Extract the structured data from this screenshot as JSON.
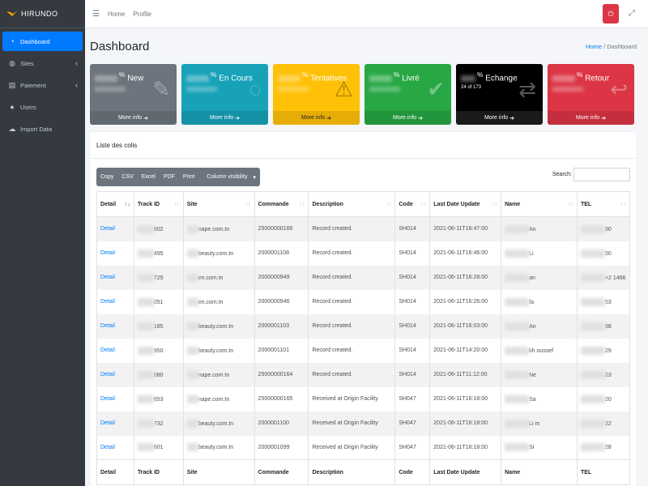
{
  "brand": {
    "name": "HIRUNDO"
  },
  "sidebar": {
    "items": [
      {
        "label": "Dashboard",
        "icon": "dashboard-icon",
        "active": true
      },
      {
        "label": "Sites",
        "icon": "sites-icon",
        "has_chevron": true
      },
      {
        "label": "Paiement",
        "icon": "payment-icon",
        "has_chevron": true
      },
      {
        "label": "Users",
        "icon": "user-icon"
      },
      {
        "label": "Import Data",
        "icon": "cloud-upload-icon"
      }
    ]
  },
  "topbar": {
    "home": "Home",
    "profile": "Profile"
  },
  "header": {
    "title": "Dashboard",
    "breadcrumb_home": "Home",
    "breadcrumb_sep": "/",
    "breadcrumb_current": "Dashboard"
  },
  "boxes": [
    {
      "label": "New",
      "pct": "%",
      "more": "More info",
      "color": "#6c757d",
      "icon": "edit-icon"
    },
    {
      "label": "En Cours",
      "pct": "%",
      "more": "More info",
      "color": "#17a2b8",
      "icon": "spinner-icon"
    },
    {
      "label": "Tentatives",
      "pct": "%",
      "more": "More info",
      "color": "#ffc107",
      "icon": "warning-icon"
    },
    {
      "label": "Livré",
      "pct": "%",
      "more": "More info",
      "color": "#28a745",
      "icon": "check-icon"
    },
    {
      "label": "Echange",
      "pct": "%",
      "sub": "24 of 173",
      "more": "More info",
      "color": "#000000",
      "icon": "exchange-icon"
    },
    {
      "label": "Retour",
      "pct": "%",
      "more": "More info",
      "color": "#dc3545",
      "icon": "return-icon"
    }
  ],
  "card": {
    "title": "Liste des colis"
  },
  "toolbar": {
    "copy": "Copy",
    "csv": "CSV",
    "excel": "Excel",
    "pdf": "PDF",
    "print": "Print",
    "colvis": "Column visibility"
  },
  "search": {
    "label": "Search:",
    "value": ""
  },
  "table": {
    "columns": [
      "Detail",
      "Track ID",
      "Site",
      "Commande",
      "Description",
      "Code",
      "Last Date Update",
      "Name",
      "TEL"
    ],
    "rows": [
      {
        "detail": "Detail",
        "track": "602",
        "site": "nape.com.tn",
        "commande": "25000000166",
        "desc": "Record created.",
        "code": "SH014",
        "date": "2021-06-11T16:47:00",
        "name": "An",
        "tel": "90"
      },
      {
        "detail": "Detail",
        "track": "495",
        "site": "beauty.com.tn",
        "commande": "2000001108",
        "desc": "Record created.",
        "code": "SH014",
        "date": "2021-06-11T16:46:00",
        "name": "Li",
        "tel": "50"
      },
      {
        "detail": "Detail",
        "track": "725",
        "site": "en.com.tn",
        "commande": "2000000949",
        "desc": "Record created.",
        "code": "SH014",
        "date": "2021-06-11T16:28:00",
        "name": "an",
        "tel": "+2 1466"
      },
      {
        "detail": "Detail",
        "track": "051",
        "site": "en.com.tn",
        "commande": "2000000946",
        "desc": "Record created.",
        "code": "SH014",
        "date": "2021-06-11T16:26:00",
        "name": "fa",
        "tel": "53"
      },
      {
        "detail": "Detail",
        "track": "185",
        "site": "beauty.com.tn",
        "commande": "2000001103",
        "desc": "Record created.",
        "code": "SH014",
        "date": "2021-06-11T16:03:00",
        "name": "An",
        "tel": "98"
      },
      {
        "detail": "Detail",
        "track": "950",
        "site": "beauty.com.tn",
        "commande": "2000001101",
        "desc": "Record created.",
        "code": "SH014",
        "date": "2021-06-11T14:20:00",
        "name": "kh oussef",
        "tel": "29"
      },
      {
        "detail": "Detail",
        "track": "080",
        "site": "nape.com.tn",
        "commande": "25000000164",
        "desc": "Record created.",
        "code": "SH014",
        "date": "2021-06-11T11:12:00",
        "name": "Ne",
        "tel": "23"
      },
      {
        "detail": "Detail",
        "track": "653",
        "site": "nape.com.tn",
        "commande": "25000000165",
        "desc": "Received at Origin Facility",
        "code": "SH047",
        "date": "2021-06-11T16:18:00",
        "name": "Sa",
        "tel": "20"
      },
      {
        "detail": "Detail",
        "track": "732",
        "site": "beauty.com.tn",
        "commande": "2000001100",
        "desc": "Received at Origin Facility",
        "code": "SH047",
        "date": "2021-06-11T16:18:00",
        "name": "Li m",
        "tel": "22"
      },
      {
        "detail": "Detail",
        "track": "601",
        "site": "beauty.com.tn",
        "commande": "2000001099",
        "desc": "Received at Origin Facility",
        "code": "SH047",
        "date": "2021-06-11T16:18:00",
        "name": "Si",
        "tel": "28"
      }
    ]
  }
}
